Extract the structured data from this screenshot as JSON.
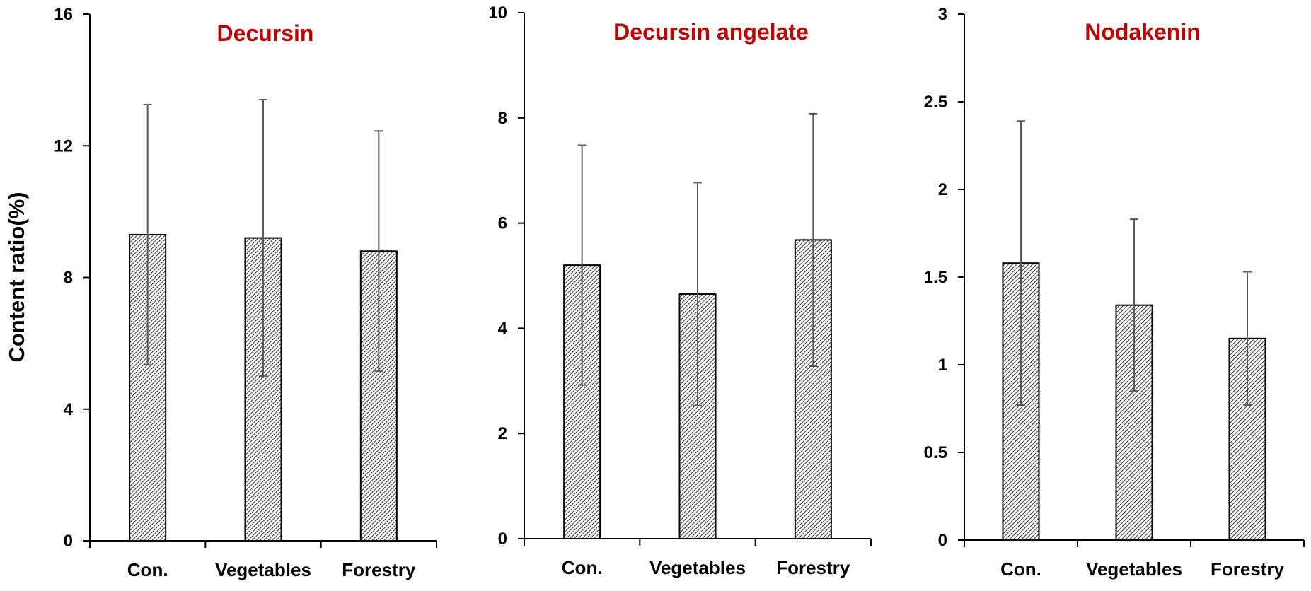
{
  "colors": {
    "title": "#c00000",
    "axis": "#000000",
    "error_bar": "#595959",
    "bar_fill_base": "#ffffff",
    "bar_hatch": "#000000"
  },
  "shared": {
    "ylabel": "Content ratio(%)"
  },
  "chart_data": [
    {
      "type": "bar",
      "title": "Decursin",
      "categories": [
        "Con.",
        "Vegetables",
        "Forestry"
      ],
      "values": [
        9.3,
        9.2,
        8.8
      ],
      "error": [
        3.95,
        4.2,
        3.65
      ],
      "ylim": [
        0,
        16
      ],
      "yticks": [
        0,
        4,
        8,
        12,
        16
      ],
      "ytick_labels": [
        "0",
        "4",
        "8",
        "12",
        "16"
      ],
      "xlabel": "",
      "ylabel": "Content ratio(%)",
      "grid": false
    },
    {
      "type": "bar",
      "title": "Decursin angelate",
      "categories": [
        "Con.",
        "Vegetables",
        "Forestry"
      ],
      "values": [
        5.2,
        4.65,
        5.68
      ],
      "error": [
        2.28,
        2.12,
        2.4
      ],
      "ylim": [
        0,
        10
      ],
      "yticks": [
        0,
        2,
        4,
        6,
        8,
        10
      ],
      "ytick_labels": [
        "0",
        "2",
        "4",
        "6",
        "8",
        "10"
      ],
      "xlabel": "",
      "ylabel": "",
      "grid": false
    },
    {
      "type": "bar",
      "title": "Nodakenin",
      "categories": [
        "Con.",
        "Vegetables",
        "Forestry"
      ],
      "values": [
        1.58,
        1.34,
        1.15
      ],
      "error": [
        0.81,
        0.49,
        0.38
      ],
      "ylim": [
        0,
        3
      ],
      "yticks": [
        0,
        0.5,
        1,
        1.5,
        2,
        2.5,
        3
      ],
      "ytick_labels": [
        "0",
        "0.5",
        "1",
        "1.5",
        "2",
        "2.5",
        "3"
      ],
      "xlabel": "",
      "ylabel": "",
      "grid": false
    }
  ]
}
